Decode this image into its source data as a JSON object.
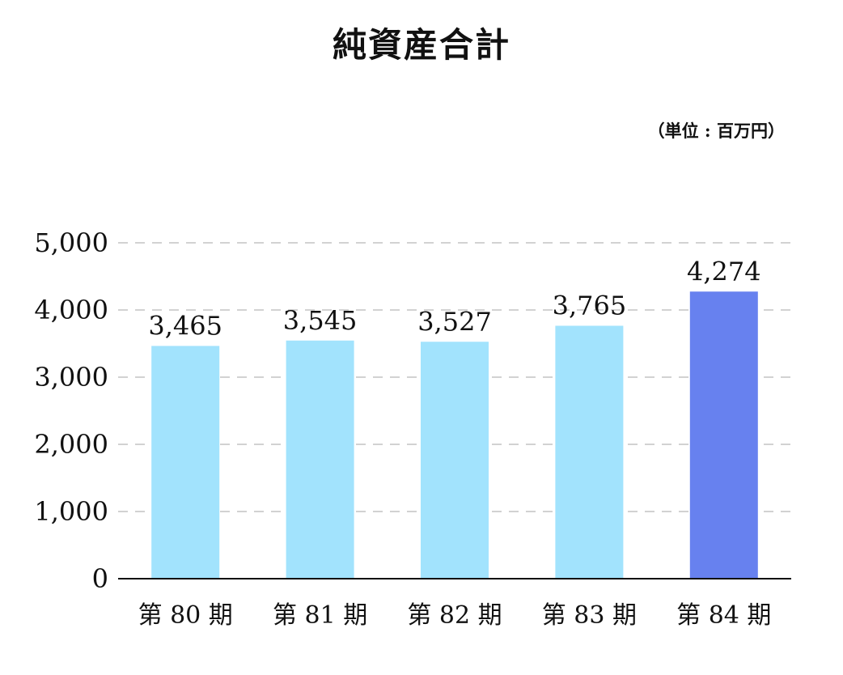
{
  "chart_data": {
    "type": "bar",
    "title": "純資産合計",
    "unit": "（単位 : 百万円）",
    "categories": [
      "第 80 期",
      "第 81 期",
      "第 82 期",
      "第 83 期",
      "第 84 期"
    ],
    "values": [
      3465,
      3545,
      3527,
      3765,
      4274
    ],
    "value_labels": [
      "3,465",
      "3,545",
      "3,527",
      "3,765",
      "4,274"
    ],
    "ylim": [
      0,
      5000
    ],
    "yticks": [
      0,
      1000,
      2000,
      3000,
      4000,
      5000
    ],
    "ytick_labels": [
      "0",
      "1,000",
      "2,000",
      "3,000",
      "4,000",
      "5,000"
    ],
    "grid": true,
    "bar_color": "#a2e3fd",
    "highlight_color": "#6781ef",
    "highlight_index": 4
  }
}
